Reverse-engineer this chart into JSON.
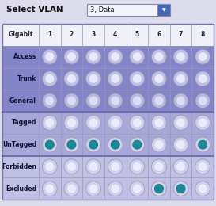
{
  "title": "Select VLAN",
  "dropdown_text": "3, Data",
  "bg_color": "#dcdcec",
  "row_labels": [
    "Access",
    "Trunk",
    "General",
    "Tagged",
    "UnTagged",
    "Forbidden",
    "Excluded"
  ],
  "col_labels": [
    "Gigabit",
    "1",
    "2",
    "3",
    "4",
    "5",
    "6",
    "7",
    "8"
  ],
  "radio_states": {
    "Access": [
      0,
      0,
      0,
      0,
      0,
      0,
      0,
      0
    ],
    "Trunk": [
      0,
      0,
      0,
      0,
      0,
      0,
      0,
      0
    ],
    "General": [
      0,
      0,
      0,
      0,
      0,
      0,
      0,
      0
    ],
    "Tagged": [
      0,
      0,
      0,
      0,
      0,
      0,
      0,
      0
    ],
    "UnTagged": [
      1,
      1,
      1,
      1,
      1,
      0,
      0,
      1
    ],
    "Forbidden": [
      0,
      0,
      0,
      0,
      0,
      0,
      0,
      0
    ],
    "Excluded": [
      0,
      0,
      0,
      0,
      0,
      1,
      1,
      0
    ]
  },
  "row_colors": {
    "Access": "#8484c8",
    "Trunk": "#8484c8",
    "General": "#8484c8",
    "Tagged": "#a8a8d8",
    "UnTagged": "#a8a8d8",
    "Forbidden": "#c0c0e4",
    "Excluded": "#c0c0e4"
  },
  "header_bg": "#f0f0f8",
  "table_border": "#7777aa",
  "cell_border": "#9999bb",
  "group_sep_color": "#6666aa",
  "label_color": "#111133",
  "teal_color": "#1a8a9a",
  "teal_edge": "#0a6a7a"
}
